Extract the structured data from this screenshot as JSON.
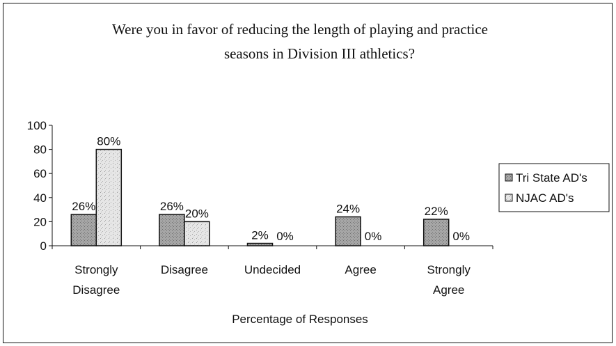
{
  "chart_data": {
    "type": "bar",
    "title": [
      "Were you in favor of reducing the length of playing and practice",
      "seasons in Division III athletics?"
    ],
    "xlabel": "Percentage of Responses",
    "ylabel": "",
    "ylim": [
      0,
      100
    ],
    "yticks": [
      0,
      20,
      40,
      60,
      80,
      100
    ],
    "categories": [
      [
        "Strongly",
        "Disagree"
      ],
      [
        "Disagree"
      ],
      [
        "Undecided"
      ],
      [
        "Agree"
      ],
      [
        "Strongly",
        "Agree"
      ]
    ],
    "series": [
      {
        "name": "Tri State AD's",
        "values": [
          26,
          26,
          2,
          24,
          22
        ],
        "labels": [
          "26%",
          "26%",
          "2%",
          "24%",
          "22%"
        ],
        "color": "#9a9a9a"
      },
      {
        "name": "NJAC AD's",
        "values": [
          80,
          20,
          0,
          0,
          0
        ],
        "labels": [
          "80%",
          "20%",
          "0%",
          "0%",
          "0%"
        ],
        "color": "#d9d9d9"
      }
    ],
    "grid": false,
    "legend_position": "right"
  }
}
